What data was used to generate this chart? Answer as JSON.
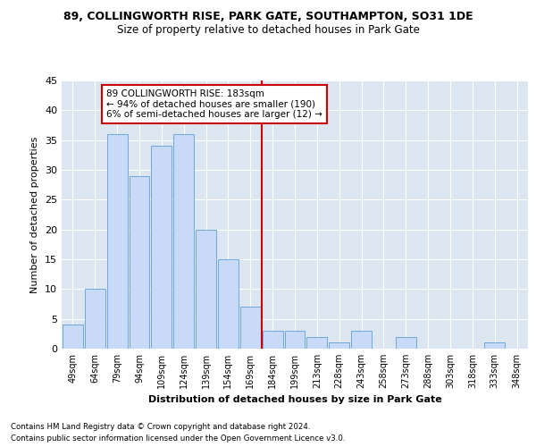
{
  "title": "89, COLLINGWORTH RISE, PARK GATE, SOUTHAMPTON, SO31 1DE",
  "subtitle": "Size of property relative to detached houses in Park Gate",
  "xlabel": "Distribution of detached houses by size in Park Gate",
  "ylabel": "Number of detached properties",
  "footer_line1": "Contains HM Land Registry data © Crown copyright and database right 2024.",
  "footer_line2": "Contains public sector information licensed under the Open Government Licence v3.0.",
  "categories": [
    "49sqm",
    "64sqm",
    "79sqm",
    "94sqm",
    "109sqm",
    "124sqm",
    "139sqm",
    "154sqm",
    "169sqm",
    "184sqm",
    "199sqm",
    "213sqm",
    "228sqm",
    "243sqm",
    "258sqm",
    "273sqm",
    "288sqm",
    "303sqm",
    "318sqm",
    "333sqm",
    "348sqm"
  ],
  "values": [
    4,
    10,
    36,
    29,
    34,
    36,
    20,
    15,
    7,
    3,
    3,
    2,
    1,
    3,
    0,
    2,
    0,
    0,
    0,
    1,
    0
  ],
  "bar_color": "#c9daf8",
  "bar_edge_color": "#6fa8dc",
  "highlight_line_color": "#cc0000",
  "annotation_text": "89 COLLINGWORTH RISE: 183sqm\n← 94% of detached houses are smaller (190)\n6% of semi-detached houses are larger (12) →",
  "annotation_box_color": "#cc0000",
  "ylim": [
    0,
    45
  ],
  "yticks": [
    0,
    5,
    10,
    15,
    20,
    25,
    30,
    35,
    40,
    45
  ],
  "grid_color": "#ffffff",
  "bg_color": "#dce6f1",
  "fig_bg_color": "#ffffff"
}
